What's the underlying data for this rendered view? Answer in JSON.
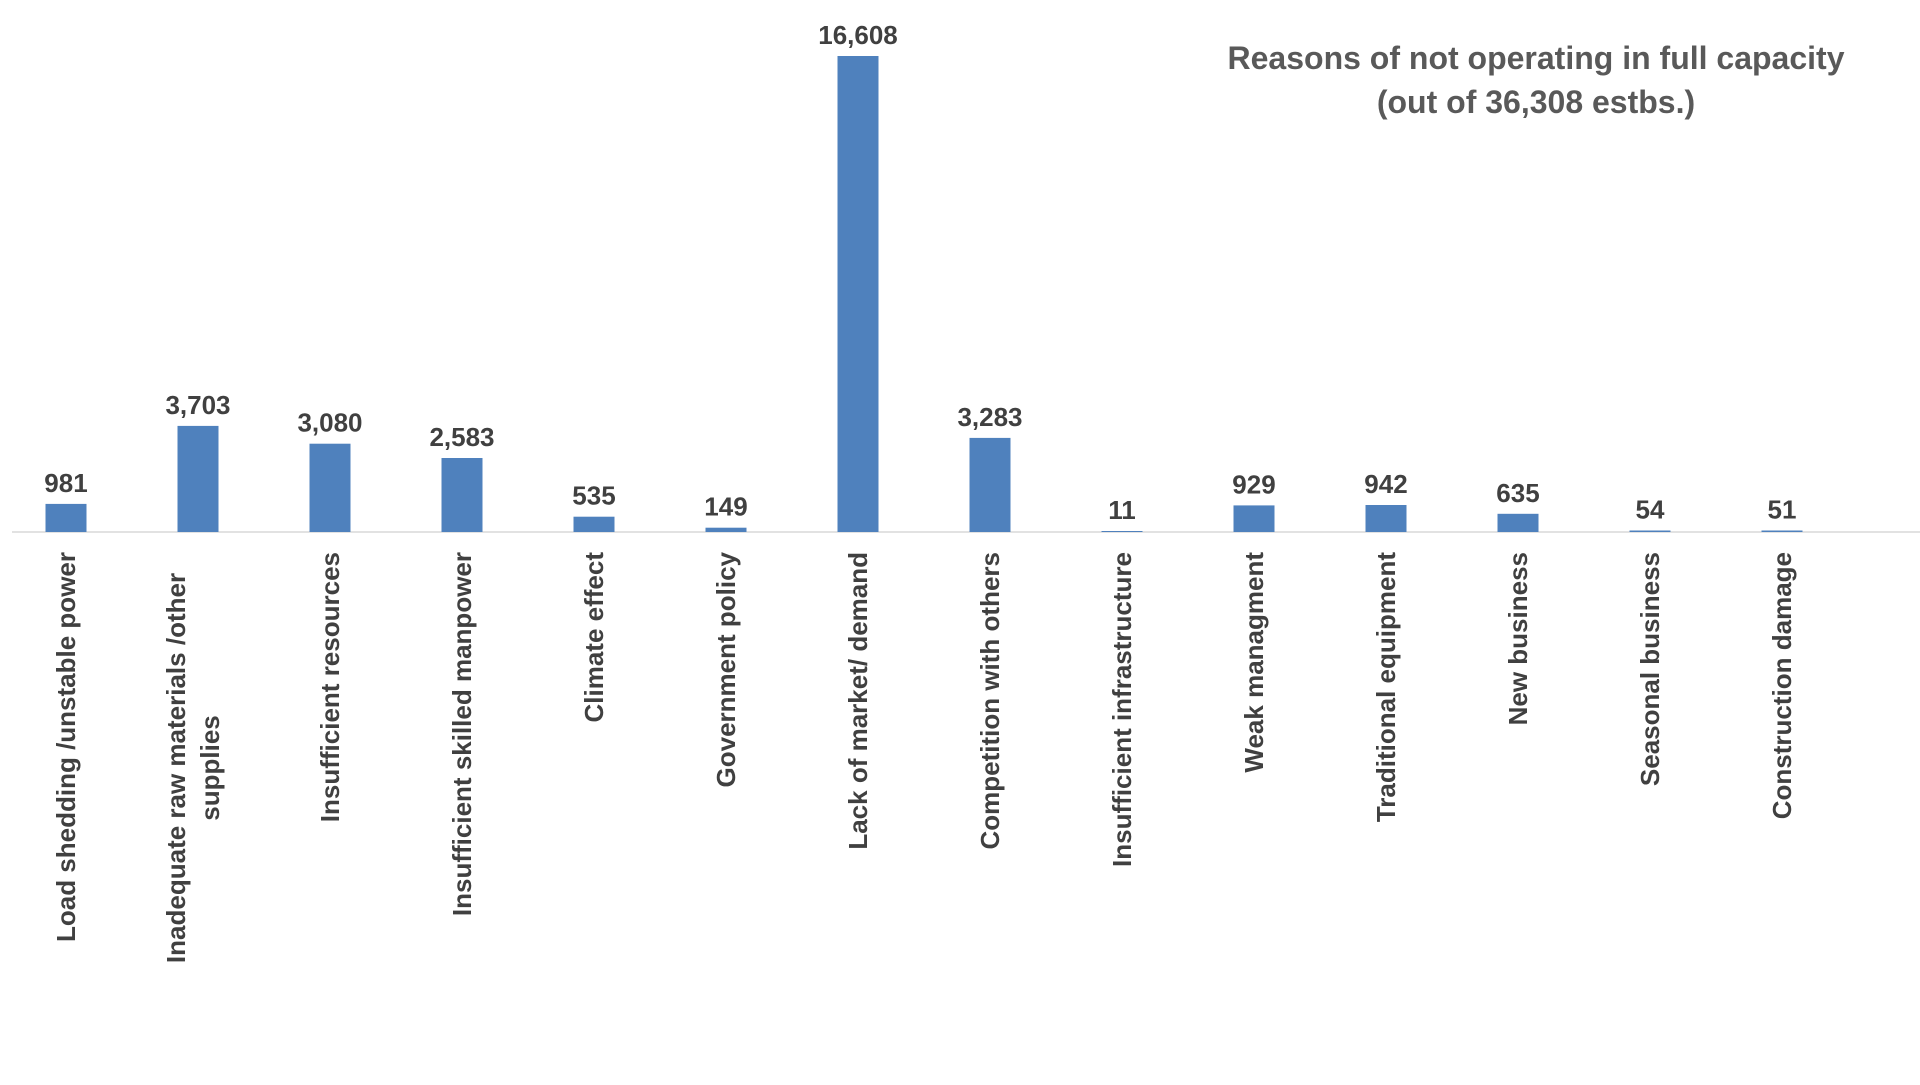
{
  "chart_data": {
    "type": "bar",
    "title": "Reasons of not operating in full capacity",
    "subtitle": "(out of 36,308 estbs.)",
    "xlabel": "",
    "ylabel": "",
    "categories": [
      "Load shedding /unstable power",
      "Inadequate raw materials /other supplies",
      "Insufficient resources",
      "Insufficient  skilled manpower",
      "Climate effect",
      "Government policy",
      "Lack of market/ demand",
      "Competition with others",
      "Insufficient infrastructure",
      "Weak managment",
      "Traditional equipment",
      "New business",
      "Seasonal business",
      "Construction damage"
    ],
    "category_lines": [
      [
        "Load shedding /unstable power"
      ],
      [
        "Inadequate raw materials /other",
        "supplies"
      ],
      [
        "Insufficient resources"
      ],
      [
        "Insufficient  skilled manpower"
      ],
      [
        "Climate effect"
      ],
      [
        "Government policy"
      ],
      [
        "Lack of market/ demand"
      ],
      [
        "Competition with others"
      ],
      [
        "Insufficient infrastructure"
      ],
      [
        "Weak managment"
      ],
      [
        "Traditional equipment"
      ],
      [
        "New business"
      ],
      [
        "Seasonal business"
      ],
      [
        "Construction damage"
      ]
    ],
    "values": [
      981,
      3703,
      3080,
      2583,
      535,
      149,
      16608,
      3283,
      11,
      929,
      942,
      635,
      54,
      51
    ],
    "data_labels": [
      "981",
      "3,703",
      "3,080",
      "2,583",
      "535",
      "149",
      "16,608",
      "3,283",
      "11",
      "929",
      "942",
      "635",
      "54",
      "51"
    ],
    "ylim": [
      0,
      16608
    ],
    "grid": false,
    "legend": "none",
    "colors": {
      "bar": "#4F81BD",
      "axis": "#D9D9D9",
      "label": "#404040",
      "title": "#595959"
    }
  }
}
